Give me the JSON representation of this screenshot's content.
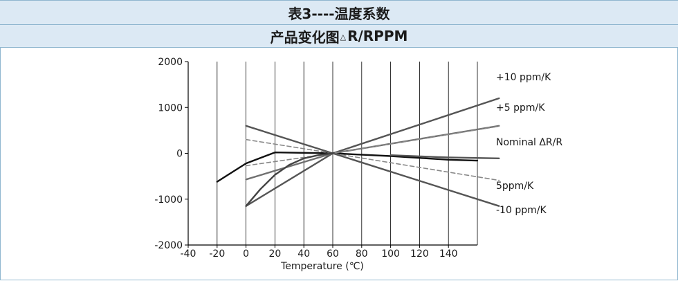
{
  "header": {
    "title": "表3----温度系数",
    "subtitle_prefix": "产品变化图",
    "subtitle_symbol": "△",
    "subtitle_suffix": "R/RPPM"
  },
  "chart_data": {
    "type": "line",
    "xlabel": "Temperature (℃)",
    "ylabel": "",
    "xlim": [
      -40,
      160
    ],
    "ylim": [
      -2000,
      2000
    ],
    "x_ticks": [
      -40,
      -20,
      0,
      20,
      40,
      60,
      80,
      100,
      120,
      140
    ],
    "y_ticks": [
      2000,
      1000,
      0,
      -1000,
      -2000
    ],
    "grid": "vertical",
    "series": [
      {
        "name": "+10 ppm/K",
        "style": "solid",
        "color": "#555555",
        "x": [
          0,
          60,
          175
        ],
        "y": [
          -1150,
          0,
          1200
        ]
      },
      {
        "name": "+5 ppm/K",
        "style": "solid",
        "color": "#707070",
        "x": [
          0,
          60,
          175
        ],
        "y": [
          -570,
          0,
          600
        ]
      },
      {
        "name": "Nominal ΔR/R",
        "style": "solid",
        "color": "#111111",
        "x": [
          -20,
          0,
          20,
          60,
          100,
          140,
          160
        ],
        "y": [
          -620,
          -220,
          20,
          0,
          -60,
          -140,
          -160
        ]
      },
      {
        "name": "",
        "style": "solid",
        "color": "#555555",
        "x": [
          100,
          140,
          175
        ],
        "y": [
          -40,
          -90,
          -110
        ]
      },
      {
        "name": "5ppm/K",
        "style": "dashed",
        "color": "#888888",
        "x": [
          0,
          60,
          175
        ],
        "y": [
          300,
          0,
          -590
        ]
      },
      {
        "name": "",
        "style": "dashed",
        "color": "#888888",
        "x": [
          0,
          60,
          175
        ],
        "y": [
          -270,
          0,
          590
        ]
      },
      {
        "name": "-10 ppm/K",
        "style": "solid",
        "color": "#555555",
        "x": [
          0,
          60,
          175
        ],
        "y": [
          600,
          0,
          -1150
        ]
      },
      {
        "name": "",
        "style": "solid",
        "color": "#444444",
        "x": [
          0,
          10,
          20,
          30,
          40,
          50,
          60
        ],
        "y": [
          -1150,
          -780,
          -470,
          -250,
          -110,
          -40,
          0
        ]
      }
    ],
    "annotations": [
      {
        "text": "+10 ppm/K"
      },
      {
        "text": "+5 ppm/K"
      },
      {
        "text": "Nominal ΔR/R"
      },
      {
        "text": "5ppm/K"
      },
      {
        "text": "-10 ppm/K"
      }
    ]
  }
}
